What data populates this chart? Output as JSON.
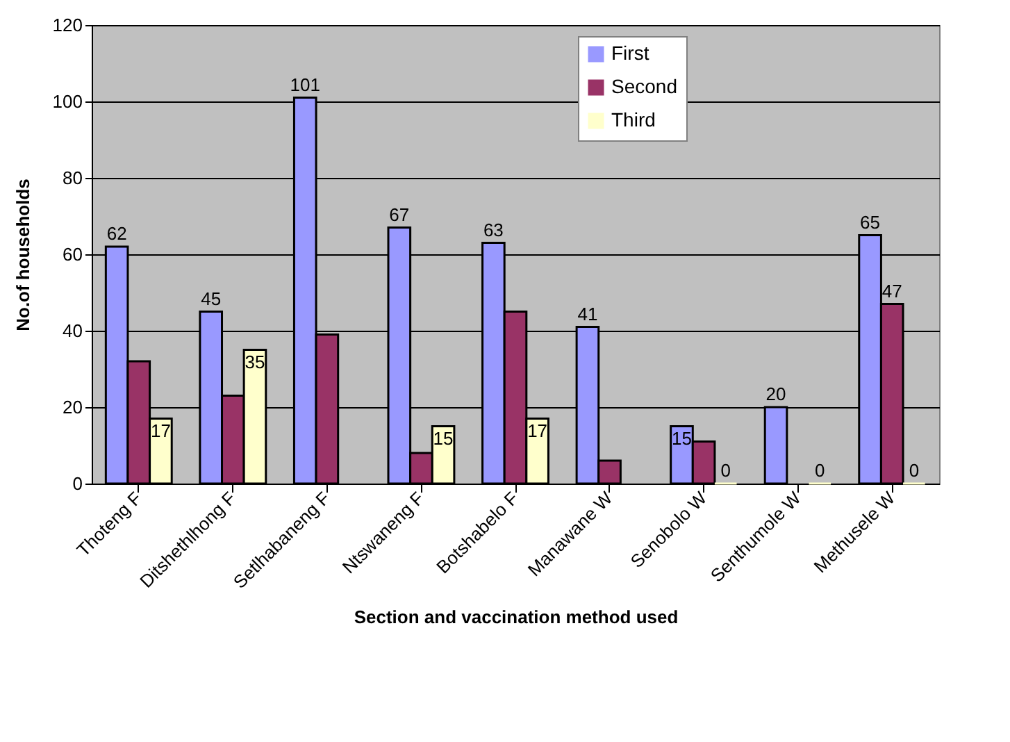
{
  "chart_data": {
    "type": "bar",
    "xlabel": "Section and vaccination method used",
    "ylabel": "No.of households",
    "categories": [
      "Thoteng F",
      "Ditshethlhong F",
      "Setlhabaneng F",
      "Ntswaneng F",
      "Botshabelo F",
      "Manawane W",
      "Senobolo W",
      "Senthumole W",
      "Methusele W"
    ],
    "series": [
      {
        "name": "First",
        "color": "#9999ff",
        "values": [
          62,
          45,
          101,
          67,
          63,
          41,
          15,
          20,
          65
        ],
        "value_labels": [
          "62",
          "45",
          "101",
          "67",
          "63",
          "41",
          "15",
          "20",
          "65"
        ]
      },
      {
        "name": "Second",
        "color": "#993366",
        "values": [
          32,
          23,
          39,
          8,
          45,
          6,
          11,
          null,
          47
        ],
        "value_labels": [
          null,
          null,
          null,
          null,
          null,
          null,
          null,
          null,
          "47"
        ]
      },
      {
        "name": "Third",
        "color": "#ffffcc",
        "values": [
          17,
          35,
          null,
          15,
          17,
          null,
          0,
          0,
          0
        ],
        "value_labels": [
          "17",
          "35",
          null,
          "15",
          "17",
          null,
          "0",
          "0",
          "0"
        ]
      }
    ],
    "ylim": [
      0,
      120
    ],
    "yticks": [
      0,
      20,
      40,
      60,
      80,
      100,
      120
    ],
    "grid": "y",
    "legend": "top"
  }
}
